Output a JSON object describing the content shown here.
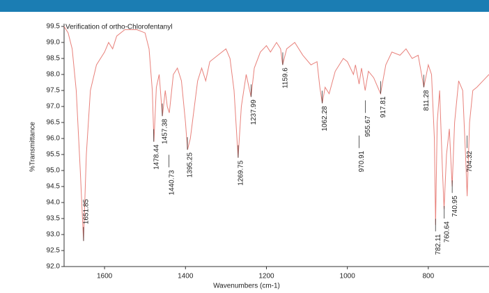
{
  "chart_data": {
    "type": "line",
    "title": "Verification of ortho-Chlorofentanyl",
    "x_label": "Wavenumbers (cm-1)",
    "y_label": "%Transmittance",
    "xlim": [
      1700,
      650
    ],
    "xticks": [
      1600,
      1400,
      1200,
      1000,
      800
    ],
    "ylim": [
      92.0,
      99.5
    ],
    "yticks": [
      {
        "value": 92,
        "label": "92.0"
      },
      92.5,
      {
        "value": 93,
        "label": "93.0"
      },
      93.5,
      {
        "value": 94,
        "label": "94.0"
      },
      94.5,
      {
        "value": 95,
        "label": "95.0"
      },
      95.5,
      {
        "value": 96,
        "label": "96.0"
      },
      96.5,
      {
        "value": 97,
        "label": "97.0"
      },
      97.5,
      {
        "value": 98,
        "label": "98.0"
      },
      98.5,
      {
        "value": 99,
        "label": "99.0"
      },
      99.5
    ],
    "x": [
      1700,
      1690,
      1680,
      1670,
      1660,
      1652,
      1645,
      1635,
      1620,
      1600,
      1590,
      1580,
      1570,
      1550,
      1520,
      1500,
      1490,
      1482,
      1478,
      1472,
      1465,
      1457,
      1450,
      1445,
      1440,
      1430,
      1420,
      1410,
      1400,
      1395,
      1388,
      1380,
      1370,
      1360,
      1350,
      1340,
      1320,
      1300,
      1290,
      1280,
      1270,
      1262,
      1250,
      1238,
      1230,
      1215,
      1200,
      1190,
      1175,
      1165,
      1160,
      1150,
      1130,
      1110,
      1090,
      1075,
      1068,
      1062,
      1055,
      1045,
      1030,
      1010,
      1000,
      985,
      980,
      971,
      965,
      956,
      948,
      935,
      918,
      905,
      890,
      870,
      855,
      840,
      825,
      811,
      800,
      792,
      785,
      782,
      778,
      772,
      765,
      761,
      755,
      748,
      741,
      735,
      725,
      715,
      708,
      704,
      698,
      690,
      680,
      665,
      650
    ],
    "series": [
      {
        "color": "#e8817b",
        "values": [
          99.5,
          99.3,
          98.8,
          97.5,
          95.0,
          92.8,
          95.5,
          97.5,
          98.3,
          98.7,
          99.0,
          98.8,
          99.2,
          99.4,
          99.4,
          99.3,
          98.8,
          97.5,
          95.9,
          97.6,
          98.0,
          96.7,
          97.5,
          97.0,
          96.8,
          98.0,
          98.2,
          97.8,
          96.5,
          95.65,
          96.0,
          96.8,
          97.8,
          98.2,
          97.8,
          98.4,
          98.6,
          98.8,
          98.5,
          97.5,
          95.4,
          97.0,
          98.0,
          97.3,
          98.2,
          98.7,
          98.9,
          98.7,
          99.0,
          98.8,
          98.3,
          98.8,
          99.0,
          98.6,
          98.3,
          98.4,
          97.6,
          97.1,
          97.6,
          97.4,
          98.1,
          98.5,
          98.4,
          98.0,
          98.3,
          97.7,
          98.2,
          97.5,
          98.1,
          97.9,
          97.4,
          98.3,
          98.7,
          98.6,
          98.8,
          98.5,
          98.6,
          97.6,
          98.3,
          98.0,
          96.0,
          93.3,
          96.5,
          97.5,
          95.0,
          93.8,
          95.5,
          96.3,
          94.5,
          96.5,
          97.8,
          97.5,
          95.5,
          94.2,
          96.5,
          97.5,
          97.6,
          97.8,
          98.0
        ]
      }
    ],
    "annotations": [
      {
        "x": 1651.85,
        "y": 92.8
      },
      {
        "x": 1478.44,
        "y": 95.9
      },
      {
        "x": 1457.38,
        "y": 96.7
      },
      {
        "x": 1440.73,
        "y": 95.1
      },
      {
        "x": 1395.25,
        "y": 95.65
      },
      {
        "x": 1269.75,
        "y": 95.4
      },
      {
        "x": 1237.99,
        "y": 97.3
      },
      {
        "x": 1159.6,
        "y": 98.3
      },
      {
        "x": 1062.28,
        "y": 97.1
      },
      {
        "x": 970.91,
        "y": 95.7
      },
      {
        "x": 955.67,
        "y": 96.8
      },
      {
        "x": 917.81,
        "y": 97.4
      },
      {
        "x": 811.28,
        "y": 97.6
      },
      {
        "x": 782.11,
        "y": 93.1
      },
      {
        "x": 760.64,
        "y": 93.5
      },
      {
        "x": 740.95,
        "y": 94.3
      },
      {
        "x": 704.32,
        "y": 95.7
      }
    ]
  }
}
